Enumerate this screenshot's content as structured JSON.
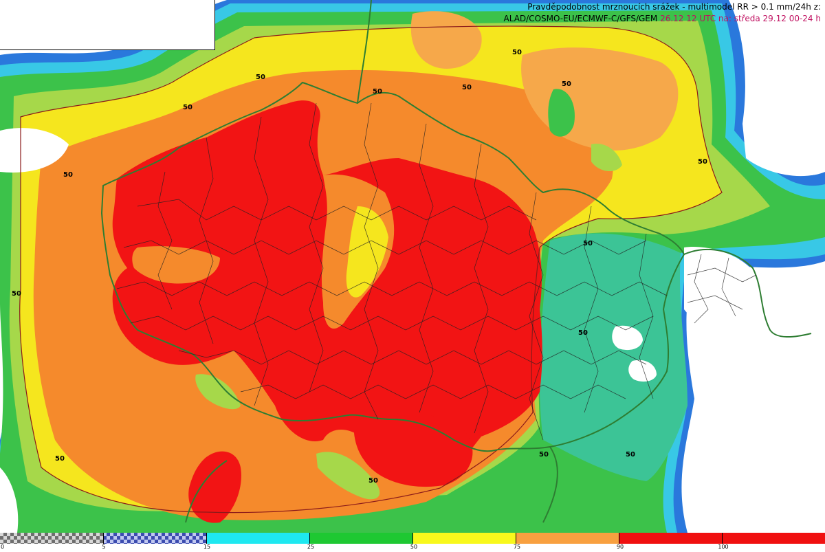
{
  "title": {
    "line1": "Pravděpodobnost mrznoucích srážek - multimodel RR > 0.1 mm/24h z:",
    "models": "ALAD/COSMO-EU/ECMWF-C/GFS/GEM",
    "run": "26.12 12 UTC na: středa 29.12 00-24 h"
  },
  "contour_labels": [
    "50",
    "50",
    "50",
    "50",
    "50",
    "50",
    "50",
    "50",
    "50",
    "50",
    "50",
    "50",
    "50",
    "50"
  ],
  "colorbar": {
    "segments": [
      {
        "from": 0,
        "to": 5,
        "color": "checker-gray"
      },
      {
        "from": 5,
        "to": 15,
        "color": "checker-blue"
      },
      {
        "from": 15,
        "to": 25,
        "color": "#1ee8f0"
      },
      {
        "from": 25,
        "to": 50,
        "color": "#1ec832"
      },
      {
        "from": 50,
        "to": 75,
        "color": "#f8f81c"
      },
      {
        "from": 75,
        "to": 90,
        "color": "#f8a040"
      },
      {
        "from": 90,
        "to": 100,
        "color": "#f01010"
      },
      {
        "from": 100,
        "to": null,
        "color": "#f01010"
      }
    ],
    "ticks": [
      "0",
      "5",
      "15",
      "25",
      "50",
      "75",
      "90",
      "100"
    ]
  },
  "colors": {
    "red": "#f21414",
    "orange": "#f58a2c",
    "light_orange": "#f6a84a",
    "yellow": "#f5e61e",
    "light_green": "#a6d84a",
    "green": "#3cc24a",
    "teal": "#3cc496",
    "cyan": "#38c8e6",
    "blue": "#2a78dc",
    "border": "#2e7d32",
    "district": "#222222",
    "contour": "#8b1a1a"
  }
}
